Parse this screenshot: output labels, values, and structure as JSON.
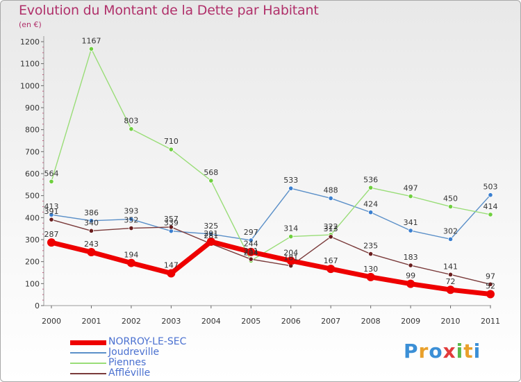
{
  "header": {
    "title": "Evolution du Montant de la Dette par Habitant",
    "subtitle": "(en €)"
  },
  "logo": {
    "text": "Proxiti",
    "colors": [
      "#3b8fd6",
      "#e9a02b",
      "#3b8fd6",
      "#e23b3b",
      "#5bb84a",
      "#e9a02b",
      "#3b8fd6"
    ]
  },
  "chart_data": {
    "type": "line",
    "title": "Evolution du Montant de la Dette par Habitant",
    "ylabel": "(en €)",
    "xlabel": "",
    "ylim": [
      0,
      1200
    ],
    "yticks": [
      0,
      100,
      200,
      300,
      400,
      500,
      600,
      700,
      800,
      900,
      1000,
      1100,
      1200
    ],
    "x": [
      "2000",
      "2001",
      "2002",
      "2003",
      "2004",
      "2005",
      "2006",
      "2007",
      "2008",
      "2009",
      "2010",
      "2011"
    ],
    "grid": false,
    "legend_position": "bottom-left",
    "series": [
      {
        "name": "Joudreville",
        "color": "#5a8fc8",
        "marker": "#3a7fd0",
        "values": [
          413,
          386,
          393,
          339,
          325,
          297,
          533,
          488,
          424,
          341,
          302,
          503
        ]
      },
      {
        "name": "Piennes",
        "color": "#99dd77",
        "marker": "#6fcf3f",
        "values": [
          564,
          1167,
          803,
          710,
          568,
          204,
          314,
          322,
          536,
          497,
          450,
          414
        ]
      },
      {
        "name": "Affléville",
        "color": "#7a3a3a",
        "marker": "#6a1e1e",
        "values": [
          391,
          340,
          352,
          357,
          281,
          211,
          181,
          313,
          235,
          183,
          141,
          97
        ]
      },
      {
        "name": "NORROY-LE-SEC",
        "color": "#ee0000",
        "marker": "#ee0000",
        "values": [
          287,
          243,
          194,
          147,
          291,
          244,
          204,
          167,
          130,
          99,
          72,
          52
        ]
      }
    ],
    "legend_order": [
      "NORROY-LE-SEC",
      "Joudreville",
      "Piennes",
      "Affléville"
    ]
  }
}
